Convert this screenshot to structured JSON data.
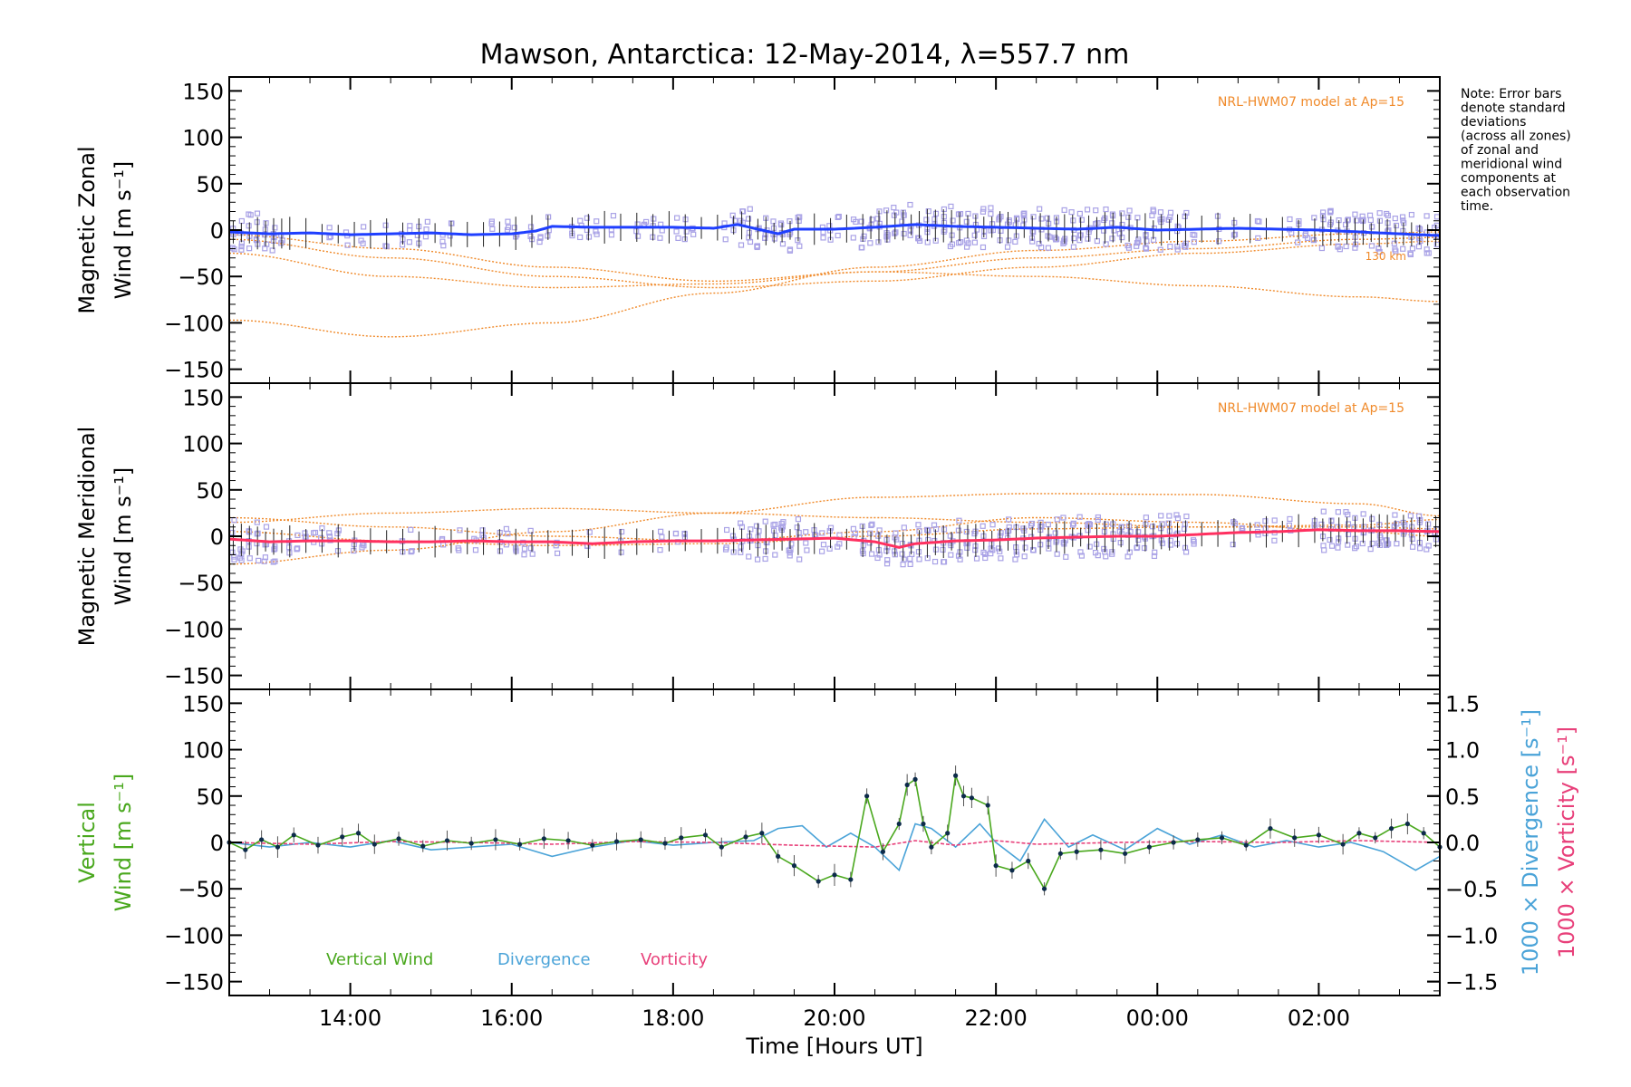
{
  "title": "Mawson, Antarctica: 12-May-2014, λ=557.7 nm",
  "note_lines": [
    "Note: Error bars",
    "denote standard",
    "deviations",
    "(across all zones)",
    "of zonal and",
    "meridional wind",
    "components at",
    "each observation",
    "time."
  ],
  "colors": {
    "zonal": "#1f3fff",
    "meridional": "#ff3060",
    "vertical": "#4aa81e",
    "divergence": "#4aa3d8",
    "vorticity": "#e8407a",
    "model": "#f08a2a",
    "zone_scatter": "#a9a2e6",
    "errorbar": "#222222"
  },
  "chart_data": [
    {
      "type": "line",
      "name": "zonal-panel",
      "ylabel_lines": [
        "Magnetic Zonal",
        "Wind [m s⁻¹]"
      ],
      "model_label": "NRL-HWM07 model at Ap=15",
      "model_height_labels": [
        "130 km"
      ],
      "xlim": [
        12.5,
        27.5
      ],
      "ylim": [
        -165,
        165
      ],
      "yticks": [
        150,
        100,
        50,
        0,
        -50,
        -100,
        -150
      ],
      "tick_labels": [
        "150",
        "100",
        "50",
        "0",
        "−50",
        "−100",
        "−150"
      ],
      "series": {
        "x": [
          12.5,
          13.0,
          13.5,
          14.0,
          14.5,
          15.0,
          15.5,
          16.0,
          16.3,
          16.5,
          17.0,
          17.5,
          18.0,
          18.5,
          18.8,
          19.0,
          19.3,
          19.5,
          20.0,
          20.5,
          21.0,
          21.5,
          22.0,
          22.5,
          23.0,
          23.5,
          24.0,
          24.5,
          25.0,
          25.5,
          26.0,
          26.5,
          27.0,
          27.5
        ],
        "values": [
          -2,
          -4,
          -3,
          -5,
          -4,
          -3,
          -5,
          -4,
          -1,
          4,
          3,
          3,
          3,
          2,
          6,
          2,
          -4,
          1,
          1,
          3,
          6,
          4,
          3,
          2,
          1,
          3,
          0,
          1,
          2,
          1,
          0,
          -2,
          -4,
          -6
        ]
      },
      "model_curves": [
        {
          "x": [
            12.5,
            14.5,
            16.5,
            18.5,
            20.5,
            22.5,
            24.5,
            26.5,
            27.5
          ],
          "values": [
            -97,
            -115,
            -100,
            -68,
            -40,
            -22,
            -12,
            -4,
            -2
          ]
        },
        {
          "x": [
            12.5,
            14.5,
            16.5,
            18.5,
            20.5,
            22.5,
            24.5,
            26.5,
            27.5
          ],
          "values": [
            -10,
            -30,
            -50,
            -62,
            -55,
            -40,
            -25,
            -15,
            -12
          ]
        },
        {
          "x": [
            12.5,
            14.5,
            16.5,
            18.5,
            20.5,
            22.5,
            24.5,
            26.5,
            27.5
          ],
          "values": [
            -25,
            -50,
            -62,
            -58,
            -45,
            -30,
            -20,
            -10,
            -8
          ]
        },
        {
          "x": [
            12.5,
            14.5,
            16.5,
            18.5,
            20.5,
            22.5,
            24.5,
            26.5,
            27.5
          ],
          "values": [
            -5,
            -20,
            -40,
            -55,
            -45,
            -50,
            -60,
            -72,
            -77
          ]
        }
      ]
    },
    {
      "type": "line",
      "name": "meridional-panel",
      "ylabel_lines": [
        "Magnetic Meridional",
        "Wind [m s⁻¹]"
      ],
      "model_label": "NRL-HWM07 model at Ap=15",
      "xlim": [
        12.5,
        27.5
      ],
      "ylim": [
        -165,
        165
      ],
      "yticks": [
        150,
        100,
        50,
        0,
        -50,
        -100,
        -150
      ],
      "tick_labels": [
        "150",
        "100",
        "50",
        "0",
        "−50",
        "−100",
        "−150"
      ],
      "series": {
        "x": [
          12.5,
          13.0,
          13.5,
          14.0,
          14.5,
          15.0,
          15.5,
          16.0,
          16.5,
          17.0,
          17.5,
          18.0,
          18.5,
          19.0,
          19.5,
          20.0,
          20.5,
          20.8,
          21.0,
          21.5,
          22.0,
          22.5,
          23.0,
          23.5,
          24.0,
          24.5,
          25.0,
          25.5,
          26.0,
          26.5,
          27.0,
          27.5
        ],
        "values": [
          -3,
          -6,
          -5,
          -5,
          -6,
          -6,
          -5,
          -6,
          -6,
          -8,
          -6,
          -5,
          -5,
          -4,
          -3,
          -2,
          -6,
          -12,
          -8,
          -5,
          -4,
          -2,
          -1,
          0,
          0,
          2,
          4,
          5,
          7,
          6,
          6,
          5
        ]
      },
      "model_curves": [
        {
          "x": [
            12.5,
            14.5,
            16.5,
            18.5,
            20.5,
            22.5,
            24.5,
            26.5,
            27.5
          ],
          "values": [
            15,
            25,
            30,
            25,
            20,
            15,
            10,
            12,
            18
          ]
        },
        {
          "x": [
            12.5,
            14.5,
            16.5,
            18.5,
            20.5,
            22.5,
            24.5,
            26.5,
            27.5
          ],
          "values": [
            -30,
            -15,
            5,
            25,
            42,
            46,
            45,
            35,
            22
          ]
        },
        {
          "x": [
            12.5,
            14.5,
            16.5,
            18.5,
            20.5,
            22.5,
            24.5,
            26.5,
            27.5
          ],
          "values": [
            20,
            10,
            0,
            -5,
            5,
            20,
            15,
            5,
            0
          ]
        },
        {
          "x": [
            12.5,
            14.5,
            16.5,
            18.5,
            20.5,
            22.5,
            24.5,
            26.5,
            27.5
          ],
          "values": [
            5,
            -5,
            -10,
            -8,
            0,
            8,
            10,
            10,
            8
          ]
        }
      ]
    },
    {
      "type": "line",
      "name": "vertical-panel",
      "ylabel_lines": [
        "Vertical",
        "Wind [m s⁻¹]"
      ],
      "right_labels": [
        "1000 × Divergence [s⁻¹]",
        "1000 × Vorticity [s⁻¹]"
      ],
      "xlim": [
        12.5,
        27.5
      ],
      "ylim": [
        -165,
        165
      ],
      "yticks": [
        150,
        100,
        50,
        0,
        -50,
        -100,
        -150
      ],
      "tick_labels": [
        "150",
        "100",
        "50",
        "0",
        "−50",
        "−100",
        "−150"
      ],
      "y2lim": [
        -1.65,
        1.65
      ],
      "y2ticks": [
        1.5,
        1.0,
        0.5,
        0.0,
        -0.5,
        -1.0,
        -1.5
      ],
      "y2tick_labels": [
        "1.5",
        "1.0",
        "0.5",
        "0.0",
        "−0.5",
        "−1.0",
        "−1.5"
      ],
      "xticks": [
        14,
        16,
        18,
        20,
        22,
        24,
        26
      ],
      "xtick_labels": [
        "14:00",
        "16:00",
        "18:00",
        "20:00",
        "22:00",
        "00:00",
        "02:00"
      ],
      "xlabel": "Time [Hours UT]",
      "legend": [
        "Vertical Wind",
        "Divergence",
        "Vorticity"
      ],
      "series": [
        {
          "name": "Vertical Wind",
          "x": [
            12.5,
            12.7,
            12.9,
            13.1,
            13.3,
            13.6,
            13.9,
            14.1,
            14.3,
            14.6,
            14.9,
            15.2,
            15.5,
            15.8,
            16.1,
            16.4,
            16.7,
            17.0,
            17.3,
            17.6,
            17.9,
            18.1,
            18.4,
            18.6,
            18.9,
            19.1,
            19.3,
            19.5,
            19.8,
            20.0,
            20.2,
            20.4,
            20.6,
            20.8,
            20.9,
            21.0,
            21.1,
            21.2,
            21.4,
            21.5,
            21.6,
            21.7,
            21.9,
            22.0,
            22.2,
            22.4,
            22.6,
            22.8,
            23.0,
            23.3,
            23.6,
            23.9,
            24.2,
            24.5,
            24.8,
            25.1,
            25.4,
            25.7,
            26.0,
            26.3,
            26.5,
            26.7,
            26.9,
            27.1,
            27.3,
            27.5
          ],
          "values": [
            0,
            -8,
            3,
            -5,
            8,
            -3,
            6,
            10,
            -2,
            4,
            -4,
            2,
            -1,
            3,
            -2,
            4,
            2,
            -3,
            1,
            3,
            -1,
            5,
            8,
            -5,
            6,
            10,
            -15,
            -25,
            -42,
            -35,
            -40,
            50,
            -10,
            20,
            62,
            68,
            20,
            -5,
            10,
            72,
            50,
            48,
            40,
            -25,
            -30,
            -20,
            -50,
            -12,
            -10,
            -8,
            -12,
            -5,
            0,
            3,
            5,
            -3,
            15,
            5,
            8,
            -2,
            10,
            5,
            15,
            20,
            10,
            -5
          ]
        },
        {
          "name": "Divergence",
          "x": [
            12.5,
            13.0,
            13.5,
            14.0,
            14.5,
            15.0,
            15.5,
            16.0,
            16.5,
            17.0,
            17.5,
            18.0,
            18.5,
            19.0,
            19.3,
            19.6,
            19.9,
            20.2,
            20.5,
            20.8,
            21.0,
            21.2,
            21.5,
            21.8,
            22.0,
            22.3,
            22.6,
            22.9,
            23.2,
            23.6,
            24.0,
            24.4,
            24.8,
            25.2,
            25.6,
            26.0,
            26.4,
            26.8,
            27.2,
            27.5
          ],
          "values": [
            0.0,
            -0.05,
            0.0,
            -0.05,
            0.02,
            -0.08,
            -0.05,
            -0.02,
            -0.15,
            -0.05,
            0.02,
            -0.03,
            0.0,
            0.02,
            0.15,
            0.18,
            -0.05,
            0.1,
            -0.05,
            -0.3,
            0.2,
            0.15,
            -0.05,
            0.2,
            0.0,
            -0.2,
            0.25,
            -0.05,
            0.08,
            -0.08,
            0.15,
            -0.02,
            0.08,
            -0.05,
            0.02,
            -0.05,
            0.0,
            -0.1,
            -0.3,
            -0.15
          ]
        },
        {
          "name": "Vorticity",
          "x": [
            12.5,
            13.5,
            14.5,
            15.5,
            16.5,
            17.5,
            18.5,
            19.5,
            20.5,
            21.0,
            21.5,
            22.0,
            22.5,
            23.5,
            24.5,
            25.5,
            26.5,
            27.5
          ],
          "values": [
            0.0,
            -0.02,
            0.01,
            0.0,
            -0.02,
            0.01,
            0.0,
            -0.03,
            -0.05,
            0.02,
            -0.03,
            0.02,
            -0.02,
            0.0,
            0.01,
            0.0,
            0.02,
            0.0
          ]
        }
      ]
    }
  ]
}
